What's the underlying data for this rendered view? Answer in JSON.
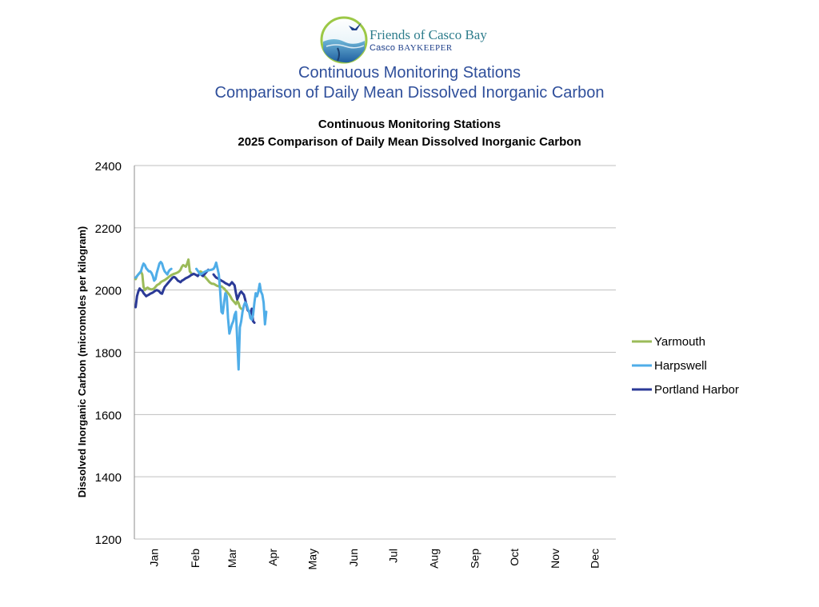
{
  "logo": {
    "name": "Friends of Casco Bay",
    "sub_prefix": "Casco",
    "sub_emph": "BAYKEEPER"
  },
  "header": {
    "line1": "Continuous Monitoring Stations",
    "line2": "Comparison of Daily Mean Dissolved Inorganic Carbon"
  },
  "colors": {
    "header": "#2f4f9b",
    "Yarmouth": "#9bbb59",
    "Harpswell": "#4fade8",
    "Portland Harbor": "#2b3a97",
    "grid": "#bfbfbf"
  },
  "chart_data": {
    "type": "line",
    "title": [
      "Continuous Monitoring Stations",
      "2025 Comparison of Daily Mean Dissolved Inorganic Carbon"
    ],
    "xlabel": "",
    "ylabel": "Dissolved Inorganic Carbon (micromoles per kilogram)",
    "ylim": [
      1200,
      2400
    ],
    "yticks": [
      1200,
      1400,
      1600,
      1800,
      2000,
      2200,
      2400
    ],
    "xlim": [
      0,
      365
    ],
    "xtick_labels": [
      "Jan",
      "Feb",
      "Mar",
      "Apr",
      "May",
      "Jun",
      "Jul",
      "Aug",
      "Sep",
      "Oct",
      "Nov",
      "Dec"
    ],
    "xtick_days": [
      15,
      46,
      74,
      105,
      135,
      166,
      196,
      227,
      258,
      288,
      319,
      349
    ],
    "grid": true,
    "legend_position": "right",
    "series": [
      {
        "name": "Yarmouth",
        "x": [
          1,
          2,
          3,
          4,
          5,
          6,
          7,
          8,
          9,
          10,
          11,
          12,
          13,
          14,
          15,
          16,
          17,
          18,
          19,
          20,
          21,
          22,
          23,
          24,
          25,
          26,
          27,
          28,
          29,
          30,
          31,
          32,
          33,
          34,
          35,
          36,
          37,
          38,
          39,
          40,
          41,
          42,
          43,
          44,
          45,
          46,
          47,
          48,
          49,
          50,
          51,
          52,
          53,
          54,
          55,
          56,
          57,
          58,
          59,
          60,
          61,
          62,
          63,
          64,
          65,
          66,
          67,
          68,
          69,
          70,
          71,
          72,
          73,
          74,
          75,
          76,
          77,
          78,
          79,
          80,
          81
        ],
        "y": [
          2035,
          2045,
          2050,
          2055,
          2060,
          2050,
          2010,
          2000,
          2005,
          2008,
          2005,
          2003,
          2002,
          2003,
          2005,
          2010,
          2015,
          2018,
          2020,
          2025,
          2028,
          2030,
          2032,
          2035,
          2038,
          2042,
          2045,
          2048,
          2050,
          2052,
          2053,
          2055,
          2057,
          2060,
          2065,
          2075,
          2080,
          2078,
          2075,
          2085,
          2098,
          2060,
          2055,
          2050,
          null,
          null,
          null,
          null,
          null,
          2060,
          2058,
          2050,
          2045,
          2040,
          2035,
          2030,
          2025,
          2022,
          2020,
          2020,
          2018,
          2015,
          2013,
          2012,
          2010,
          2012,
          2008,
          2005,
          2000,
          1995,
          1990,
          1985,
          1978,
          1970,
          1965,
          1960,
          1955,
          1965,
          1958,
          1945,
          1940
        ]
      },
      {
        "name": "Harpswell",
        "x": [
          1,
          2,
          3,
          4,
          5,
          6,
          7,
          8,
          9,
          10,
          11,
          12,
          13,
          14,
          15,
          16,
          17,
          18,
          19,
          20,
          21,
          22,
          23,
          24,
          25,
          26,
          27,
          28,
          29,
          30,
          31,
          32,
          33,
          34,
          35,
          36,
          37,
          38,
          39,
          40,
          41,
          42,
          43,
          44,
          45,
          46,
          47,
          48,
          49,
          50,
          51,
          52,
          53,
          54,
          55,
          56,
          57,
          58,
          59,
          60,
          61,
          62,
          63,
          64,
          65,
          66,
          67,
          68,
          69,
          70,
          71,
          72,
          73,
          74,
          75,
          76,
          77,
          78,
          79,
          80,
          81,
          82,
          83,
          84,
          85,
          86,
          87,
          88,
          89,
          90,
          91,
          92,
          93,
          94,
          95,
          96,
          97,
          98,
          99,
          100
        ],
        "y": [
          2040,
          2045,
          2050,
          2055,
          2060,
          2075,
          2085,
          2080,
          2070,
          2065,
          2060,
          2060,
          2055,
          2045,
          2030,
          2035,
          2055,
          2070,
          2085,
          2090,
          2085,
          2070,
          2060,
          2055,
          2050,
          2060,
          2065,
          2068,
          null,
          null,
          null,
          null,
          null,
          null,
          null,
          null,
          null,
          null,
          null,
          null,
          null,
          null,
          null,
          null,
          null,
          null,
          2068,
          2062,
          2056,
          2050,
          2052,
          2055,
          2058,
          2060,
          2062,
          2063,
          2064,
          2065,
          2066,
          2068,
          2075,
          2088,
          2070,
          2050,
          2000,
          1930,
          1925,
          1960,
          1990,
          1980,
          1910,
          1860,
          1875,
          1890,
          1900,
          1920,
          1930,
          1840,
          1745,
          1880,
          1900,
          1930,
          1950,
          1960,
          1955,
          1940,
          1930,
          1910,
          1905,
          1920,
          1960,
          1990,
          1980,
          1995,
          2020,
          1995,
          1985,
          1960,
          1890,
          1930
        ]
      },
      {
        "name": "Portland Harbor",
        "x": [
          1,
          2,
          3,
          4,
          5,
          6,
          7,
          8,
          9,
          10,
          11,
          12,
          13,
          14,
          15,
          16,
          17,
          18,
          19,
          20,
          21,
          22,
          23,
          24,
          25,
          26,
          27,
          28,
          29,
          30,
          31,
          32,
          33,
          34,
          35,
          36,
          37,
          38,
          39,
          40,
          41,
          42,
          43,
          44,
          45,
          46,
          47,
          48,
          49,
          50,
          51,
          52,
          53,
          54,
          55,
          56,
          57,
          58,
          59,
          60,
          61,
          62,
          63,
          64,
          65,
          66,
          67,
          68,
          69,
          70,
          71,
          72,
          73,
          74,
          75,
          76,
          77,
          78,
          79,
          80,
          81,
          82,
          83,
          84,
          85,
          86,
          87,
          88,
          89,
          90,
          91
        ],
        "y": [
          1945,
          1980,
          1995,
          2005,
          2000,
          1998,
          1990,
          1985,
          1980,
          1983,
          1985,
          1988,
          1990,
          1992,
          1995,
          1998,
          2000,
          1998,
          1995,
          1990,
          1988,
          2000,
          2010,
          2015,
          2020,
          2025,
          2030,
          2035,
          2040,
          2042,
          2040,
          2035,
          2030,
          2028,
          2025,
          2030,
          2032,
          2035,
          2038,
          2040,
          2042,
          2045,
          2048,
          2050,
          2052,
          2050,
          2048,
          2045,
          2050,
          2052,
          2048,
          2045,
          2050,
          2055,
          2060,
          2065,
          null,
          null,
          null,
          2050,
          2045,
          2040,
          2038,
          2035,
          2033,
          2030,
          2028,
          2025,
          2022,
          2020,
          2018,
          2015,
          2020,
          2025,
          2020,
          2015,
          1990,
          1970,
          1980,
          1990,
          1995,
          1990,
          1985,
          1970,
          1950,
          1935,
          1930,
          1925,
          1940,
          1900,
          1895
        ]
      }
    ]
  }
}
